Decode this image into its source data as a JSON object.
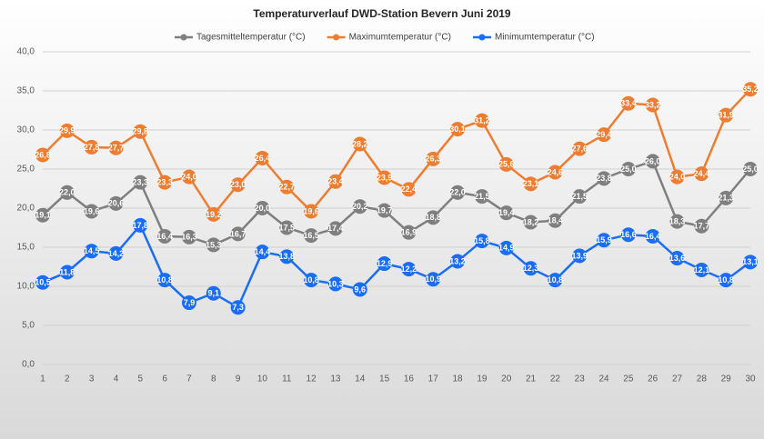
{
  "chart_data": {
    "type": "line",
    "title": "Temperaturverlauf DWD-Station Bevern Juni 2019",
    "categories": [
      "1",
      "2",
      "3",
      "4",
      "5",
      "6",
      "7",
      "8",
      "9",
      "10",
      "11",
      "12",
      "13",
      "14",
      "15",
      "16",
      "17",
      "18",
      "19",
      "20",
      "21",
      "22",
      "23",
      "24",
      "25",
      "26",
      "27",
      "28",
      "29",
      "30"
    ],
    "series": [
      {
        "name": "Tagesmitteltemperatur (°C)",
        "color": "#7f7f7f",
        "values": [
          19.1,
          22.0,
          19.6,
          20.6,
          23.3,
          16.4,
          16.3,
          15.3,
          16.7,
          20.0,
          17.5,
          16.5,
          17.4,
          20.2,
          19.7,
          16.9,
          18.8,
          22.0,
          21.5,
          19.4,
          18.2,
          18.4,
          21.5,
          23.8,
          25.0,
          26.0,
          18.3,
          17.7,
          21.3,
          25.0
        ],
        "value_labels": [
          "19,1",
          "22,0",
          "19,6",
          "20,6",
          "23,3",
          "16,4",
          "16,3",
          "15,3",
          "16,7",
          "20,0",
          "17,5",
          "16,5",
          "17,4",
          "20,2",
          "19,7",
          "16,9",
          "18,8",
          "22,0",
          "21,5",
          "19,4",
          "18,2",
          "18,4",
          "21,5",
          "23,8",
          "25,0",
          "26,0",
          "18,3",
          "17,7",
          "21,3",
          "25,0"
        ]
      },
      {
        "name": "Maximumtemperatur (°C)",
        "color": "#ed7d31",
        "values": [
          26.8,
          29.9,
          27.8,
          27.7,
          29.8,
          23.3,
          24.0,
          19.2,
          23.0,
          26.4,
          22.7,
          19.6,
          23.4,
          28.2,
          23.9,
          22.4,
          26.3,
          30.1,
          31.2,
          25.6,
          23.1,
          24.6,
          27.6,
          29.4,
          33.4,
          33.2,
          24.0,
          24.4,
          31.9,
          35.2
        ],
        "value_labels": [
          "26,8",
          "29,9",
          "27,8",
          "27,7",
          "29,8",
          "23,3",
          "24,0",
          "19,2",
          "23,0",
          "26,4",
          "22,7",
          "19,6",
          "23,4",
          "28,2",
          "23,9",
          "22,4",
          "26,3",
          "30,1",
          "31,2",
          "25,6",
          "23,1",
          "24,6",
          "27,6",
          "29,4",
          "33,4",
          "33,2",
          "24,0",
          "24,4",
          "31,9",
          "35,2"
        ]
      },
      {
        "name": "Minimumtemperatur (°C)",
        "color": "#1a6ef5",
        "values": [
          10.5,
          11.8,
          14.5,
          14.2,
          17.8,
          10.8,
          7.9,
          9.1,
          7.3,
          14.4,
          13.8,
          10.8,
          10.3,
          9.6,
          12.9,
          12.2,
          10.9,
          13.2,
          15.8,
          14.9,
          12.3,
          10.8,
          13.9,
          15.9,
          16.6,
          16.4,
          13.6,
          12.1,
          10.8,
          13.1
        ],
        "value_labels": [
          "10,5",
          "11,8",
          "14,5",
          "14,2",
          "17,8",
          "10,8",
          "7,9",
          "9,1",
          "7,3",
          "14,4",
          "13,8",
          "10,8",
          "10,3",
          "9,6",
          "12,9",
          "12,2",
          "10,9",
          "13,2",
          "15,8",
          "14,9",
          "12,3",
          "10,8",
          "13,9",
          "15,9",
          "16,6",
          "16,4",
          "13,6",
          "12,1",
          "10,8",
          "13,1"
        ]
      }
    ],
    "ylim": [
      0,
      40
    ],
    "yticks": [
      {
        "value": 0,
        "label": "0,0"
      },
      {
        "value": 5,
        "label": "5,0"
      },
      {
        "value": 10,
        "label": "10,0"
      },
      {
        "value": 15,
        "label": "15,0"
      },
      {
        "value": 20,
        "label": "20,0"
      },
      {
        "value": 25,
        "label": "25,0"
      },
      {
        "value": 30,
        "label": "30,0"
      },
      {
        "value": 35,
        "label": "35,0"
      },
      {
        "value": 40,
        "label": "40,0"
      }
    ],
    "grid": true,
    "legend": "top"
  }
}
